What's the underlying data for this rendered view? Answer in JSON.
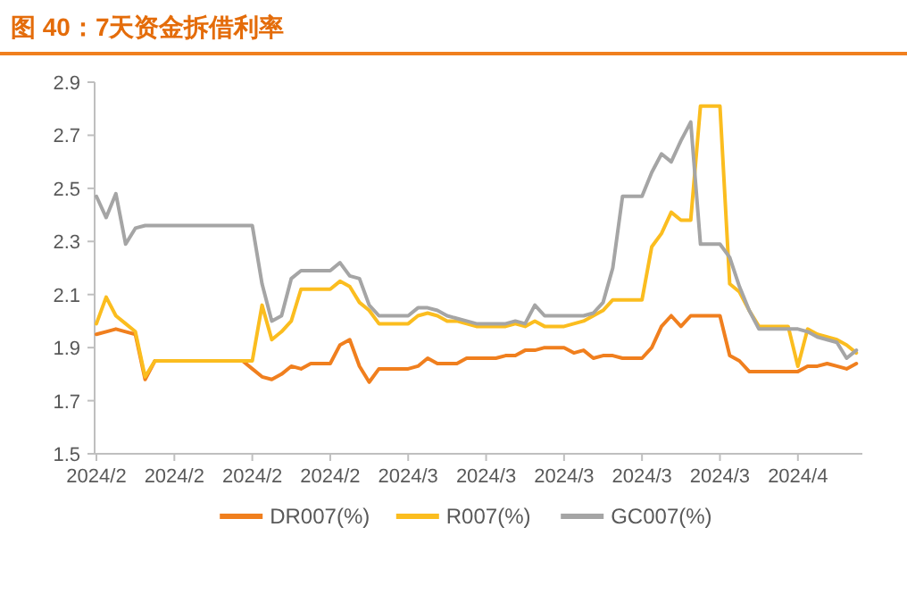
{
  "chart_data": {
    "type": "line",
    "title": "图 40：7天资金拆借利率",
    "categories": [
      "2024/2",
      null,
      null,
      null,
      null,
      null,
      null,
      null,
      "2024/2",
      null,
      null,
      null,
      null,
      null,
      null,
      null,
      "2024/2",
      null,
      null,
      null,
      null,
      null,
      null,
      null,
      "2024/2",
      null,
      null,
      null,
      null,
      null,
      null,
      null,
      "2024/3",
      null,
      null,
      null,
      null,
      null,
      null,
      null,
      "2024/3",
      null,
      null,
      null,
      null,
      null,
      null,
      null,
      "2024/3",
      null,
      null,
      null,
      null,
      null,
      null,
      null,
      "2024/3",
      null,
      null,
      null,
      null,
      null,
      null,
      null,
      "2024/3",
      null,
      null,
      null,
      null,
      null,
      null,
      null,
      "2024/4",
      null,
      null,
      null,
      null,
      null,
      null
    ],
    "series": [
      {
        "name": "DR007(%)",
        "color": "#f07f1e",
        "values": [
          1.95,
          1.96,
          1.97,
          1.96,
          1.95,
          1.78,
          1.85,
          1.85,
          1.85,
          1.85,
          1.85,
          1.85,
          1.85,
          1.85,
          1.85,
          1.85,
          1.82,
          1.79,
          1.78,
          1.8,
          1.83,
          1.82,
          1.84,
          1.84,
          1.84,
          1.91,
          1.93,
          1.83,
          1.77,
          1.82,
          1.82,
          1.82,
          1.82,
          1.83,
          1.86,
          1.84,
          1.84,
          1.84,
          1.86,
          1.86,
          1.86,
          1.86,
          1.87,
          1.87,
          1.89,
          1.89,
          1.9,
          1.9,
          1.9,
          1.88,
          1.89,
          1.86,
          1.87,
          1.87,
          1.86,
          1.86,
          1.86,
          1.9,
          1.98,
          2.02,
          1.98,
          2.02,
          2.02,
          2.02,
          2.02,
          1.87,
          1.85,
          1.81,
          1.81,
          1.81,
          1.81,
          1.81,
          1.81,
          1.83,
          1.83,
          1.84,
          1.83,
          1.82,
          1.84
        ]
      },
      {
        "name": "R007(%)",
        "color": "#fbbd1f",
        "values": [
          1.99,
          2.09,
          2.02,
          1.99,
          1.96,
          1.79,
          1.85,
          1.85,
          1.85,
          1.85,
          1.85,
          1.85,
          1.85,
          1.85,
          1.85,
          1.85,
          1.85,
          2.06,
          1.93,
          1.96,
          2.0,
          2.12,
          2.12,
          2.12,
          2.12,
          2.15,
          2.13,
          2.07,
          2.04,
          1.99,
          1.99,
          1.99,
          1.99,
          2.02,
          2.03,
          2.02,
          2.0,
          2.0,
          1.99,
          1.98,
          1.98,
          1.98,
          1.98,
          1.99,
          1.98,
          2.0,
          1.98,
          1.98,
          1.98,
          1.99,
          2.0,
          2.02,
          2.04,
          2.08,
          2.08,
          2.08,
          2.08,
          2.28,
          2.33,
          2.41,
          2.38,
          2.38,
          2.81,
          2.81,
          2.81,
          2.14,
          2.11,
          2.04,
          1.98,
          1.98,
          1.98,
          1.98,
          1.83,
          1.97,
          1.95,
          1.94,
          1.93,
          1.91,
          1.88
        ]
      },
      {
        "name": "GC007(%)",
        "color": "#a5a5a5",
        "values": [
          2.47,
          2.39,
          2.48,
          2.29,
          2.35,
          2.36,
          2.36,
          2.36,
          2.36,
          2.36,
          2.36,
          2.36,
          2.36,
          2.36,
          2.36,
          2.36,
          2.36,
          2.14,
          2.0,
          2.02,
          2.16,
          2.19,
          2.19,
          2.19,
          2.19,
          2.22,
          2.17,
          2.16,
          2.06,
          2.02,
          2.02,
          2.02,
          2.02,
          2.05,
          2.05,
          2.04,
          2.02,
          2.01,
          2.0,
          1.99,
          1.99,
          1.99,
          1.99,
          2.0,
          1.99,
          2.06,
          2.02,
          2.02,
          2.02,
          2.02,
          2.02,
          2.03,
          2.07,
          2.2,
          2.47,
          2.47,
          2.47,
          2.56,
          2.63,
          2.6,
          2.68,
          2.75,
          2.29,
          2.29,
          2.29,
          2.24,
          2.13,
          2.04,
          1.97,
          1.97,
          1.97,
          1.97,
          1.97,
          1.96,
          1.94,
          1.93,
          1.92,
          1.86,
          1.89
        ]
      }
    ],
    "ylim": [
      1.5,
      2.9
    ],
    "yticks": [
      1.5,
      1.7,
      1.9,
      2.1,
      2.3,
      2.5,
      2.7,
      2.9
    ],
    "grid": false,
    "legend": "bottom",
    "line_style": "solid",
    "marker": "none"
  }
}
